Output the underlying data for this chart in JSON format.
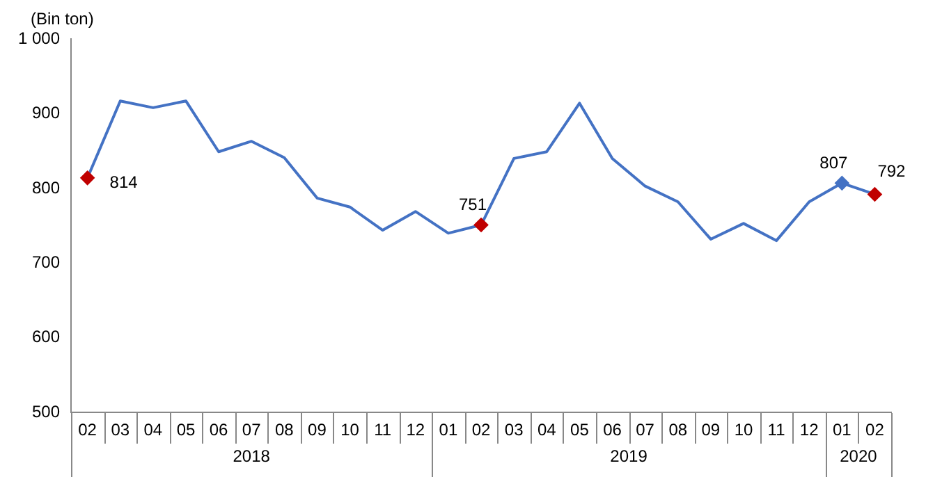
{
  "chart_data": {
    "type": "line",
    "ylabel": "(Bin ton)",
    "categories": [
      "02",
      "03",
      "04",
      "05",
      "06",
      "07",
      "08",
      "09",
      "10",
      "11",
      "12",
      "01",
      "02",
      "03",
      "04",
      "05",
      "06",
      "07",
      "08",
      "09",
      "10",
      "11",
      "12",
      "01",
      "02"
    ],
    "annotations": [
      "2018",
      "2019",
      "2020"
    ],
    "series": [
      {
        "color": "#4472c4",
        "values": [
          814,
          917,
          908,
          917,
          849,
          863,
          841,
          787,
          775,
          744,
          769,
          740,
          751,
          840,
          849,
          914,
          840,
          803,
          782,
          732,
          753,
          730,
          782,
          807,
          792
        ],
        "value_labels": [
          "814",
          null,
          null,
          null,
          null,
          null,
          null,
          null,
          null,
          null,
          null,
          null,
          "751",
          null,
          null,
          null,
          null,
          null,
          null,
          null,
          null,
          null,
          null,
          "807",
          "792"
        ],
        "colors": [
          "#c00000",
          "#4472c4",
          "#4472c4",
          "#4472c4",
          "#4472c4",
          "#4472c4",
          "#4472c4",
          "#4472c4",
          "#4472c4",
          "#4472c4",
          "#4472c4",
          "#4472c4",
          "#c00000",
          "#4472c4",
          "#4472c4",
          "#4472c4",
          "#4472c4",
          "#4472c4",
          "#4472c4",
          "#4472c4",
          "#4472c4",
          "#4472c4",
          "#4472c4",
          "#4472c4",
          "#c00000"
        ]
      }
    ],
    "ylim": [
      500,
      1000
    ],
    "yticks": [
      500,
      600,
      700,
      800,
      900,
      {
        "value": 1000,
        "label": "1 000"
      }
    ],
    "grid": false,
    "legend": false,
    "line_style": "solid"
  }
}
